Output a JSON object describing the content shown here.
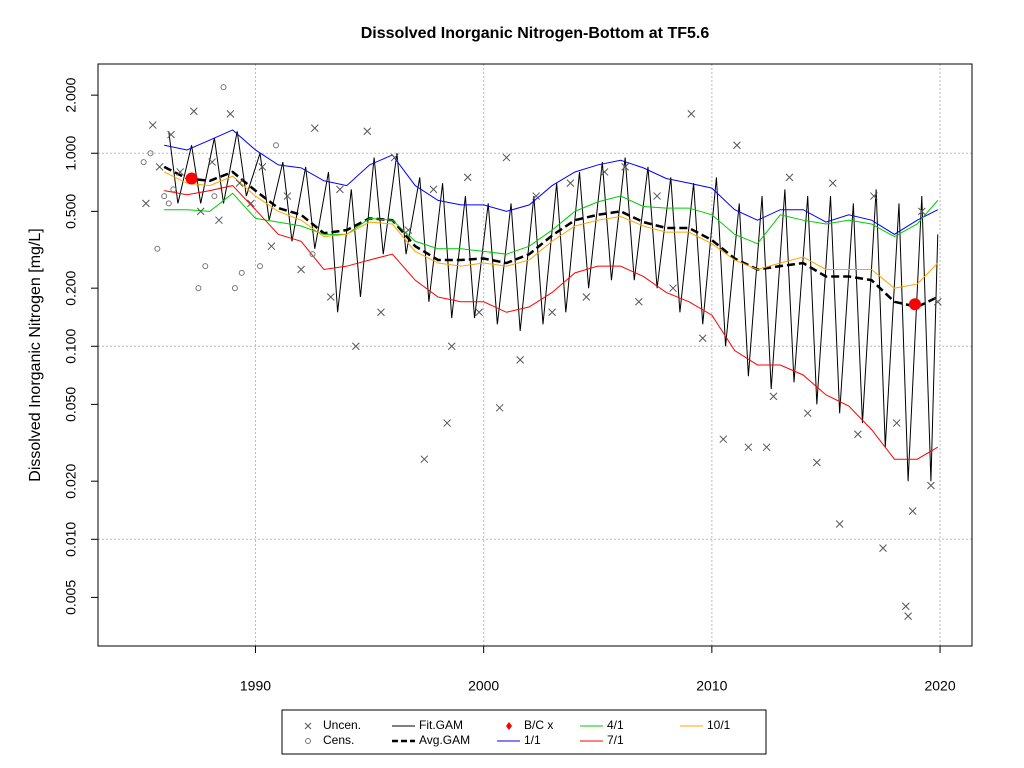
{
  "chart_data": {
    "type": "line",
    "title": "Dissolved Inorganic Nitrogen-Bottom at TF5.6",
    "y_label": "Dissolved Inorganic Nitrogen [mg/L]",
    "xlim": [
      1983.1,
      2021.4
    ],
    "ylim": [
      0.0028,
      2.9
    ],
    "log_y": true,
    "grid": true,
    "legend": "bottom",
    "xticks": [
      1990,
      2000,
      2010,
      2020
    ],
    "yticks": [
      {
        "value": 0.005,
        "label": "0.005"
      },
      {
        "value": 0.01,
        "label": "0.010"
      },
      {
        "value": 0.02,
        "label": "0.020"
      },
      {
        "value": 0.05,
        "label": "0.050"
      },
      {
        "value": 0.1,
        "label": "0.100"
      },
      {
        "value": 0.2,
        "label": "0.200"
      },
      {
        "value": 0.5,
        "label": "0.500"
      },
      {
        "value": 1,
        "label": "1.000"
      },
      {
        "value": 2,
        "label": "2.000"
      }
    ],
    "series": [
      {
        "name": "Uncen.",
        "type": "scatter",
        "marker": "x",
        "color": "#555555",
        "x": [
          1985.2,
          1985.5,
          1985.8,
          1986.3,
          1986.7,
          1987.3,
          1987.6,
          1988.1,
          1988.4,
          1988.9,
          1989.3,
          1989.8,
          1990.3,
          1990.7,
          1991.4,
          1992.0,
          1992.6,
          1993.3,
          1993.7,
          1994.4,
          1994.9,
          1995.5,
          1996.1,
          1996.7,
          1997.4,
          1997.8,
          1998.4,
          1998.6,
          1999.3,
          1999.8,
          2000.7,
          2001.0,
          2001.6,
          2002.3,
          2003.0,
          2003.8,
          2004.5,
          2005.3,
          2006.2,
          2006.8,
          2007.6,
          2008.3,
          2009.1,
          2009.6,
          2010.5,
          2011.1,
          2011.6,
          2012.4,
          2012.7,
          2013.4,
          2014.2,
          2014.6,
          2015.3,
          2015.6,
          2016.4,
          2017.1,
          2017.5,
          2018.1,
          2018.5,
          2018.6,
          2018.8,
          2019.2,
          2019.6,
          2019.9
        ],
        "values": [
          0.55,
          1.4,
          0.85,
          1.25,
          0.8,
          1.65,
          0.5,
          0.9,
          0.45,
          1.6,
          0.7,
          0.55,
          0.85,
          0.33,
          0.6,
          0.25,
          1.35,
          0.18,
          0.65,
          0.1,
          1.3,
          0.15,
          0.95,
          0.4,
          0.026,
          0.65,
          0.04,
          0.1,
          0.75,
          0.15,
          0.048,
          0.95,
          0.085,
          0.6,
          0.15,
          0.7,
          0.18,
          0.8,
          0.85,
          0.17,
          0.6,
          0.2,
          1.6,
          0.11,
          0.033,
          1.1,
          0.03,
          0.03,
          0.055,
          0.75,
          0.045,
          0.025,
          0.7,
          0.012,
          0.035,
          0.6,
          0.009,
          0.04,
          0.0045,
          0.004,
          0.014,
          0.5,
          0.019,
          0.17
        ]
      },
      {
        "name": "Cens.",
        "type": "scatter",
        "marker": "o",
        "color": "#777777",
        "x": [
          1985.1,
          1985.4,
          1985.7,
          1986.0,
          1986.2,
          1986.4,
          1987.5,
          1987.8,
          1988.2,
          1988.6,
          1989.1,
          1989.4,
          1990.2,
          1990.9,
          1992.5
        ],
        "values": [
          0.9,
          1.0,
          0.32,
          0.6,
          0.55,
          0.65,
          0.2,
          0.26,
          0.6,
          2.2,
          0.2,
          0.24,
          0.26,
          1.1,
          0.3
        ]
      },
      {
        "name": "Fit.GAM",
        "type": "line",
        "color": "#000000",
        "width": 1,
        "x": [
          1986.2,
          1986.6,
          1987.2,
          1987.6,
          1988.2,
          1988.6,
          1989.2,
          1989.6,
          1990.2,
          1990.6,
          1991.2,
          1991.6,
          1992.2,
          1992.6,
          1993.2,
          1993.6,
          1994.2,
          1994.6,
          1995.2,
          1995.6,
          1996.2,
          1996.6,
          1997.2,
          1997.6,
          1998.2,
          1998.6,
          1999.2,
          1999.6,
          2000.2,
          2000.6,
          2001.2,
          2001.6,
          2002.2,
          2002.6,
          2003.2,
          2003.6,
          2004.2,
          2004.6,
          2005.2,
          2005.6,
          2006.2,
          2006.6,
          2007.2,
          2007.6,
          2008.2,
          2008.6,
          2009.2,
          2009.6,
          2010.2,
          2010.6,
          2011.2,
          2011.6,
          2012.2,
          2012.6,
          2013.2,
          2013.6,
          2014.2,
          2014.6,
          2015.2,
          2015.6,
          2016.2,
          2016.6,
          2017.2,
          2017.6,
          2018.2,
          2018.6,
          2019.2,
          2019.6,
          2019.9
        ],
        "values": [
          1.3,
          0.55,
          1.1,
          0.55,
          1.2,
          0.55,
          1.3,
          0.6,
          1.0,
          0.45,
          0.9,
          0.35,
          0.85,
          0.32,
          0.8,
          0.15,
          0.65,
          0.18,
          0.95,
          0.3,
          1.0,
          0.3,
          0.75,
          0.17,
          0.7,
          0.14,
          0.6,
          0.14,
          0.55,
          0.13,
          0.55,
          0.12,
          0.6,
          0.13,
          0.7,
          0.15,
          0.8,
          0.2,
          0.9,
          0.22,
          0.95,
          0.22,
          0.85,
          0.2,
          0.75,
          0.15,
          0.7,
          0.13,
          0.75,
          0.1,
          0.55,
          0.07,
          0.6,
          0.06,
          0.65,
          0.065,
          0.6,
          0.05,
          0.6,
          0.045,
          0.55,
          0.04,
          0.65,
          0.03,
          0.55,
          0.02,
          0.6,
          0.02,
          0.38
        ]
      },
      {
        "name": "Avg.GAM",
        "type": "line",
        "color": "#000000",
        "width": 2.5,
        "dashed": true,
        "x": [
          1986,
          1987,
          1988,
          1989,
          1990,
          1991,
          1992,
          1993,
          1994,
          1995,
          1996,
          1997,
          1998,
          1999,
          2000,
          2001,
          2002,
          2003,
          2004,
          2005,
          2006,
          2007,
          2008,
          2009,
          2010,
          2011,
          2012,
          2013,
          2014,
          2015,
          2016,
          2017,
          2018,
          2019,
          2019.9
        ],
        "values": [
          0.85,
          0.74,
          0.72,
          0.8,
          0.64,
          0.52,
          0.48,
          0.385,
          0.4,
          0.46,
          0.45,
          0.33,
          0.28,
          0.28,
          0.285,
          0.27,
          0.3,
          0.375,
          0.45,
          0.48,
          0.5,
          0.44,
          0.41,
          0.41,
          0.355,
          0.285,
          0.25,
          0.26,
          0.27,
          0.23,
          0.23,
          0.22,
          0.17,
          0.16,
          0.18
        ]
      },
      {
        "name": "B/C x",
        "type": "scatter",
        "marker": "dot",
        "color": "#ff0000",
        "x": [
          1987.2,
          2018.9
        ],
        "values": [
          0.74,
          0.165
        ]
      },
      {
        "name": "1/1",
        "type": "line",
        "color": "#0000ff",
        "width": 1,
        "x": [
          1986,
          1987,
          1988,
          1989,
          1990,
          1991,
          1992,
          1993,
          1994,
          1995,
          1996,
          1997,
          1998,
          1999,
          2000,
          2001,
          2002,
          2003,
          2004,
          2005,
          2006,
          2007,
          2008,
          2009,
          2010,
          2011,
          2012,
          2013,
          2014,
          2015,
          2016,
          2017,
          2018,
          2019,
          2019.9
        ],
        "values": [
          1.1,
          1.04,
          1.17,
          1.32,
          1.04,
          0.87,
          0.84,
          0.72,
          0.68,
          0.87,
          0.98,
          0.68,
          0.57,
          0.54,
          0.54,
          0.5,
          0.54,
          0.68,
          0.8,
          0.87,
          0.92,
          0.84,
          0.74,
          0.7,
          0.66,
          0.51,
          0.45,
          0.51,
          0.51,
          0.44,
          0.48,
          0.45,
          0.38,
          0.45,
          0.51
        ]
      },
      {
        "name": "4/1",
        "type": "line",
        "color": "#00cc00",
        "width": 1,
        "x": [
          1986,
          1987,
          1988,
          1989,
          1990,
          1991,
          1992,
          1993,
          1994,
          1995,
          1996,
          1997,
          1998,
          1999,
          2000,
          2001,
          2002,
          2003,
          2004,
          2005,
          2006,
          2007,
          2008,
          2009,
          2010,
          2011,
          2012,
          2013,
          2014,
          2015,
          2016,
          2017,
          2018,
          2019,
          2019.9
        ],
        "values": [
          0.51,
          0.51,
          0.5,
          0.62,
          0.46,
          0.44,
          0.42,
          0.38,
          0.38,
          0.46,
          0.45,
          0.35,
          0.32,
          0.32,
          0.31,
          0.3,
          0.33,
          0.4,
          0.5,
          0.56,
          0.6,
          0.53,
          0.52,
          0.52,
          0.48,
          0.38,
          0.34,
          0.48,
          0.45,
          0.43,
          0.45,
          0.43,
          0.37,
          0.43,
          0.57
        ]
      },
      {
        "name": "7/1",
        "type": "line",
        "color": "#ff0000",
        "width": 1,
        "x": [
          1986,
          1987,
          1988,
          1989,
          1990,
          1991,
          1992,
          1993,
          1994,
          1995,
          1996,
          1997,
          1998,
          1999,
          2000,
          2001,
          2002,
          2003,
          2004,
          2005,
          2006,
          2007,
          2008,
          2009,
          2010,
          2011,
          2012,
          2013,
          2014,
          2015,
          2016,
          2017,
          2018,
          2019,
          2019.9
        ],
        "values": [
          0.64,
          0.61,
          0.64,
          0.68,
          0.51,
          0.38,
          0.35,
          0.25,
          0.26,
          0.28,
          0.3,
          0.22,
          0.18,
          0.17,
          0.17,
          0.15,
          0.16,
          0.19,
          0.24,
          0.26,
          0.26,
          0.23,
          0.19,
          0.17,
          0.145,
          0.095,
          0.08,
          0.08,
          0.071,
          0.056,
          0.049,
          0.037,
          0.026,
          0.026,
          0.03
        ]
      },
      {
        "name": "10/1",
        "type": "line",
        "color": "#ffa500",
        "width": 1,
        "x": [
          1986,
          1987,
          1988,
          1989,
          1990,
          1991,
          1992,
          1993,
          1994,
          1995,
          1996,
          1997,
          1998,
          1999,
          2000,
          2001,
          2002,
          2003,
          2004,
          2005,
          2006,
          2007,
          2008,
          2009,
          2010,
          2011,
          2012,
          2013,
          2014,
          2015,
          2016,
          2017,
          2018,
          2019,
          2019.9
        ],
        "values": [
          0.8,
          0.7,
          0.68,
          0.76,
          0.6,
          0.5,
          0.45,
          0.37,
          0.38,
          0.44,
          0.43,
          0.31,
          0.27,
          0.26,
          0.27,
          0.26,
          0.28,
          0.35,
          0.42,
          0.45,
          0.47,
          0.42,
          0.39,
          0.39,
          0.34,
          0.28,
          0.25,
          0.27,
          0.29,
          0.25,
          0.25,
          0.25,
          0.2,
          0.21,
          0.27
        ]
      }
    ]
  }
}
